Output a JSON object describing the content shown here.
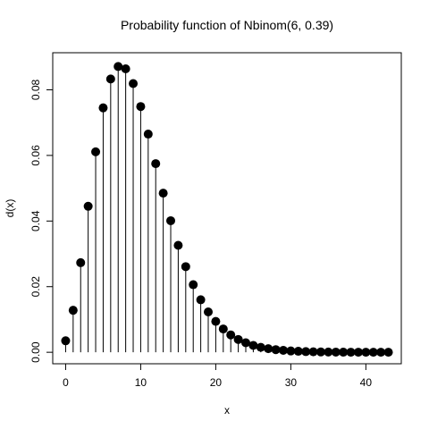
{
  "chart_data": {
    "type": "scatter",
    "style": "probability-mass stems with filled circle markers",
    "title": "Probability function of Nbinom(6, 0.39)",
    "xlabel": "x",
    "ylabel": "d(x)",
    "xlim": [
      -1.72,
      44.72
    ],
    "ylim": [
      -0.0035,
      0.0913
    ],
    "xticks": [
      0,
      10,
      20,
      30,
      40
    ],
    "yticks": [
      0.0,
      0.02,
      0.04,
      0.06,
      0.08
    ],
    "xtick_labels": [
      "0",
      "10",
      "20",
      "30",
      "40"
    ],
    "ytick_labels": [
      "0.00",
      "0.02",
      "0.04",
      "0.06",
      "0.08"
    ],
    "grid": false,
    "legend": false,
    "marker_color": "#000000",
    "x": [
      0,
      1,
      2,
      3,
      4,
      5,
      6,
      7,
      8,
      9,
      10,
      11,
      12,
      13,
      14,
      15,
      16,
      17,
      18,
      19,
      20,
      21,
      22,
      23,
      24,
      25,
      26,
      27,
      28,
      29,
      30,
      31,
      32,
      33,
      34,
      35,
      36,
      37,
      38,
      39,
      40,
      41,
      42,
      43
    ],
    "y": [
      0.0035,
      0.0128,
      0.0273,
      0.0445,
      0.0611,
      0.0745,
      0.0833,
      0.0871,
      0.0864,
      0.0819,
      0.0749,
      0.0665,
      0.0575,
      0.0485,
      0.0401,
      0.0326,
      0.0261,
      0.0206,
      0.016,
      0.0123,
      0.0094,
      0.0071,
      0.0053,
      0.0039,
      0.0029,
      0.0021,
      0.0015,
      0.0011,
      0.0008,
      0.0006,
      0.0004,
      0.0003,
      0.0002,
      0.00014,
      0.0001,
      7e-05,
      5e-05,
      3e-05,
      2e-05,
      1.5e-05,
      1e-05,
      7e-06,
      5e-06,
      3e-06
    ]
  }
}
